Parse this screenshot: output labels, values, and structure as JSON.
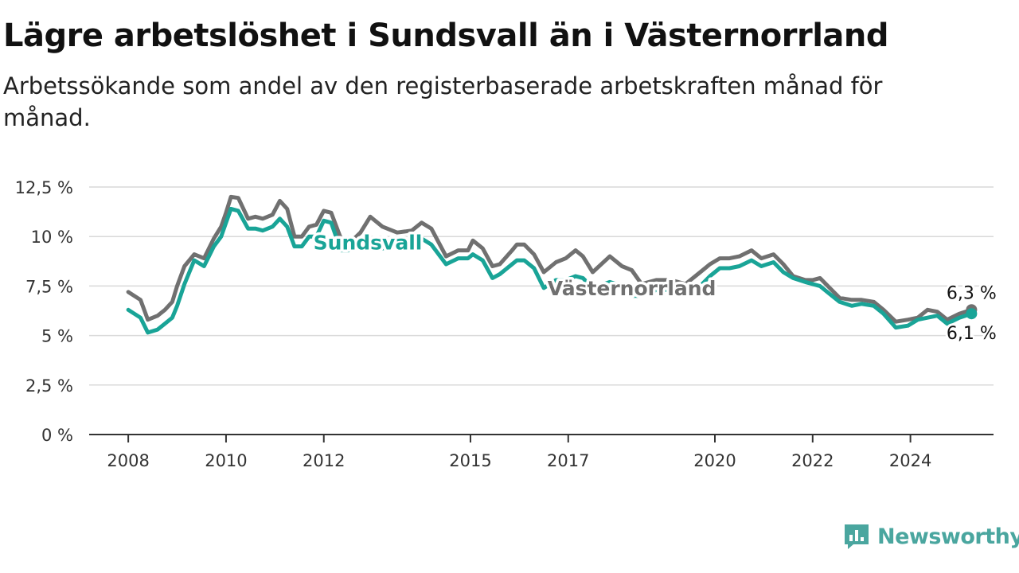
{
  "header": {
    "title": "Lägre arbetslöshet i Sundsvall än i Västernorrland",
    "subtitle": "Arbetssökande som andel av den registerbaserade arbetskraften månad för månad."
  },
  "brand": {
    "name": "Newsworthy",
    "icon": "newsworthy-logo-icon",
    "color": "#4aa69f"
  },
  "chart_data": {
    "type": "line",
    "x_type": "time",
    "ylim": [
      0,
      12.5
    ],
    "y_ticks": [
      0,
      2.5,
      5,
      7.5,
      10,
      12.5
    ],
    "y_tick_labels": [
      "0 %",
      "2,5 %",
      "5 %",
      "7,5 %",
      "10 %",
      "12,5 %"
    ],
    "x_ticks": [
      2008,
      2010,
      2012,
      2015,
      2017,
      2020,
      2022,
      2024
    ],
    "x_tick_labels": [
      "2008",
      "2010",
      "2012",
      "2015",
      "2017",
      "2020",
      "2022",
      "2024"
    ],
    "xlim": [
      2007.2,
      2025.7
    ],
    "grid": "horizontal",
    "legend": "inline labels",
    "series": [
      {
        "name": "Västernorrland",
        "color": "#707070",
        "end_label": "6,3 %",
        "points": [
          [
            2008.0,
            7.2
          ],
          [
            2008.25,
            6.8
          ],
          [
            2008.4,
            5.8
          ],
          [
            2008.6,
            6.0
          ],
          [
            2008.75,
            6.3
          ],
          [
            2008.9,
            6.7
          ],
          [
            2009.0,
            7.5
          ],
          [
            2009.15,
            8.5
          ],
          [
            2009.35,
            9.1
          ],
          [
            2009.55,
            8.9
          ],
          [
            2009.75,
            9.9
          ],
          [
            2009.9,
            10.5
          ],
          [
            2010.0,
            11.2
          ],
          [
            2010.1,
            12.0
          ],
          [
            2010.25,
            11.95
          ],
          [
            2010.45,
            10.9
          ],
          [
            2010.6,
            11.0
          ],
          [
            2010.75,
            10.9
          ],
          [
            2010.95,
            11.1
          ],
          [
            2011.1,
            11.8
          ],
          [
            2011.25,
            11.4
          ],
          [
            2011.4,
            10.0
          ],
          [
            2011.55,
            10.0
          ],
          [
            2011.7,
            10.5
          ],
          [
            2011.85,
            10.6
          ],
          [
            2012.0,
            11.3
          ],
          [
            2012.15,
            11.2
          ],
          [
            2012.35,
            9.9
          ],
          [
            2012.5,
            9.6
          ],
          [
            2012.75,
            10.2
          ],
          [
            2012.95,
            11.0
          ],
          [
            2013.2,
            10.5
          ],
          [
            2013.5,
            10.2
          ],
          [
            2013.8,
            10.3
          ],
          [
            2014.0,
            10.7
          ],
          [
            2014.2,
            10.4
          ],
          [
            2014.5,
            9.0
          ],
          [
            2014.75,
            9.3
          ],
          [
            2014.95,
            9.3
          ],
          [
            2015.05,
            9.8
          ],
          [
            2015.25,
            9.4
          ],
          [
            2015.45,
            8.5
          ],
          [
            2015.6,
            8.6
          ],
          [
            2015.85,
            9.3
          ],
          [
            2015.95,
            9.6
          ],
          [
            2016.1,
            9.6
          ],
          [
            2016.3,
            9.1
          ],
          [
            2016.5,
            8.2
          ],
          [
            2016.75,
            8.7
          ],
          [
            2016.95,
            8.9
          ],
          [
            2017.15,
            9.3
          ],
          [
            2017.3,
            9.0
          ],
          [
            2017.5,
            8.2
          ],
          [
            2017.85,
            9.0
          ],
          [
            2018.1,
            8.5
          ],
          [
            2018.3,
            8.3
          ],
          [
            2018.5,
            7.6
          ],
          [
            2018.8,
            7.8
          ],
          [
            2019.1,
            7.8
          ],
          [
            2019.4,
            7.6
          ],
          [
            2019.7,
            8.2
          ],
          [
            2019.9,
            8.6
          ],
          [
            2020.1,
            8.9
          ],
          [
            2020.3,
            8.9
          ],
          [
            2020.5,
            9.0
          ],
          [
            2020.75,
            9.3
          ],
          [
            2020.95,
            8.9
          ],
          [
            2021.2,
            9.1
          ],
          [
            2021.4,
            8.6
          ],
          [
            2021.6,
            8.0
          ],
          [
            2021.85,
            7.8
          ],
          [
            2022.0,
            7.8
          ],
          [
            2022.15,
            7.9
          ],
          [
            2022.35,
            7.4
          ],
          [
            2022.55,
            6.9
          ],
          [
            2022.8,
            6.8
          ],
          [
            2023.0,
            6.8
          ],
          [
            2023.25,
            6.7
          ],
          [
            2023.45,
            6.3
          ],
          [
            2023.7,
            5.7
          ],
          [
            2023.95,
            5.8
          ],
          [
            2024.15,
            5.9
          ],
          [
            2024.35,
            6.3
          ],
          [
            2024.55,
            6.2
          ],
          [
            2024.75,
            5.8
          ],
          [
            2025.0,
            6.1
          ],
          [
            2025.25,
            6.3
          ]
        ]
      },
      {
        "name": "Sundsvall",
        "color": "#19a497",
        "end_label": "6,1 %",
        "points": [
          [
            2008.0,
            6.3
          ],
          [
            2008.25,
            5.9
          ],
          [
            2008.4,
            5.15
          ],
          [
            2008.6,
            5.3
          ],
          [
            2008.75,
            5.6
          ],
          [
            2008.9,
            5.9
          ],
          [
            2009.0,
            6.5
          ],
          [
            2009.15,
            7.6
          ],
          [
            2009.35,
            8.8
          ],
          [
            2009.55,
            8.5
          ],
          [
            2009.75,
            9.5
          ],
          [
            2009.9,
            10.0
          ],
          [
            2010.0,
            10.7
          ],
          [
            2010.1,
            11.4
          ],
          [
            2010.25,
            11.3
          ],
          [
            2010.45,
            10.4
          ],
          [
            2010.6,
            10.4
          ],
          [
            2010.75,
            10.3
          ],
          [
            2010.95,
            10.5
          ],
          [
            2011.1,
            10.9
          ],
          [
            2011.25,
            10.5
          ],
          [
            2011.4,
            9.5
          ],
          [
            2011.55,
            9.5
          ],
          [
            2011.7,
            10.0
          ],
          [
            2011.85,
            10.0
          ],
          [
            2012.0,
            10.8
          ],
          [
            2012.15,
            10.7
          ],
          [
            2012.35,
            9.3
          ],
          [
            2012.5,
            9.3
          ],
          [
            2012.75,
            9.5
          ],
          [
            2012.95,
            9.7
          ],
          [
            2013.2,
            9.4
          ],
          [
            2013.5,
            9.5
          ],
          [
            2013.8,
            9.6
          ],
          [
            2014.0,
            9.9
          ],
          [
            2014.2,
            9.6
          ],
          [
            2014.5,
            8.6
          ],
          [
            2014.75,
            8.9
          ],
          [
            2014.95,
            8.9
          ],
          [
            2015.05,
            9.1
          ],
          [
            2015.25,
            8.8
          ],
          [
            2015.45,
            7.9
          ],
          [
            2015.6,
            8.1
          ],
          [
            2015.85,
            8.6
          ],
          [
            2015.95,
            8.8
          ],
          [
            2016.1,
            8.8
          ],
          [
            2016.3,
            8.4
          ],
          [
            2016.5,
            7.4
          ],
          [
            2016.75,
            7.8
          ],
          [
            2016.95,
            7.8
          ],
          [
            2017.15,
            8.0
          ],
          [
            2017.3,
            7.9
          ],
          [
            2017.5,
            7.4
          ],
          [
            2017.85,
            7.7
          ],
          [
            2018.1,
            7.5
          ],
          [
            2018.3,
            7.0
          ],
          [
            2018.5,
            7.0
          ],
          [
            2018.8,
            7.3
          ],
          [
            2019.1,
            7.3
          ],
          [
            2019.4,
            7.0
          ],
          [
            2019.7,
            7.5
          ],
          [
            2019.9,
            8.0
          ],
          [
            2020.1,
            8.4
          ],
          [
            2020.3,
            8.4
          ],
          [
            2020.5,
            8.5
          ],
          [
            2020.75,
            8.8
          ],
          [
            2020.95,
            8.5
          ],
          [
            2021.2,
            8.7
          ],
          [
            2021.4,
            8.2
          ],
          [
            2021.6,
            7.9
          ],
          [
            2021.85,
            7.7
          ],
          [
            2022.0,
            7.6
          ],
          [
            2022.15,
            7.5
          ],
          [
            2022.35,
            7.1
          ],
          [
            2022.55,
            6.7
          ],
          [
            2022.8,
            6.5
          ],
          [
            2023.0,
            6.6
          ],
          [
            2023.25,
            6.5
          ],
          [
            2023.45,
            6.1
          ],
          [
            2023.7,
            5.4
          ],
          [
            2023.95,
            5.5
          ],
          [
            2024.15,
            5.8
          ],
          [
            2024.35,
            5.9
          ],
          [
            2024.55,
            6.0
          ],
          [
            2024.75,
            5.6
          ],
          [
            2025.0,
            5.9
          ],
          [
            2025.25,
            6.1
          ]
        ]
      }
    ]
  }
}
